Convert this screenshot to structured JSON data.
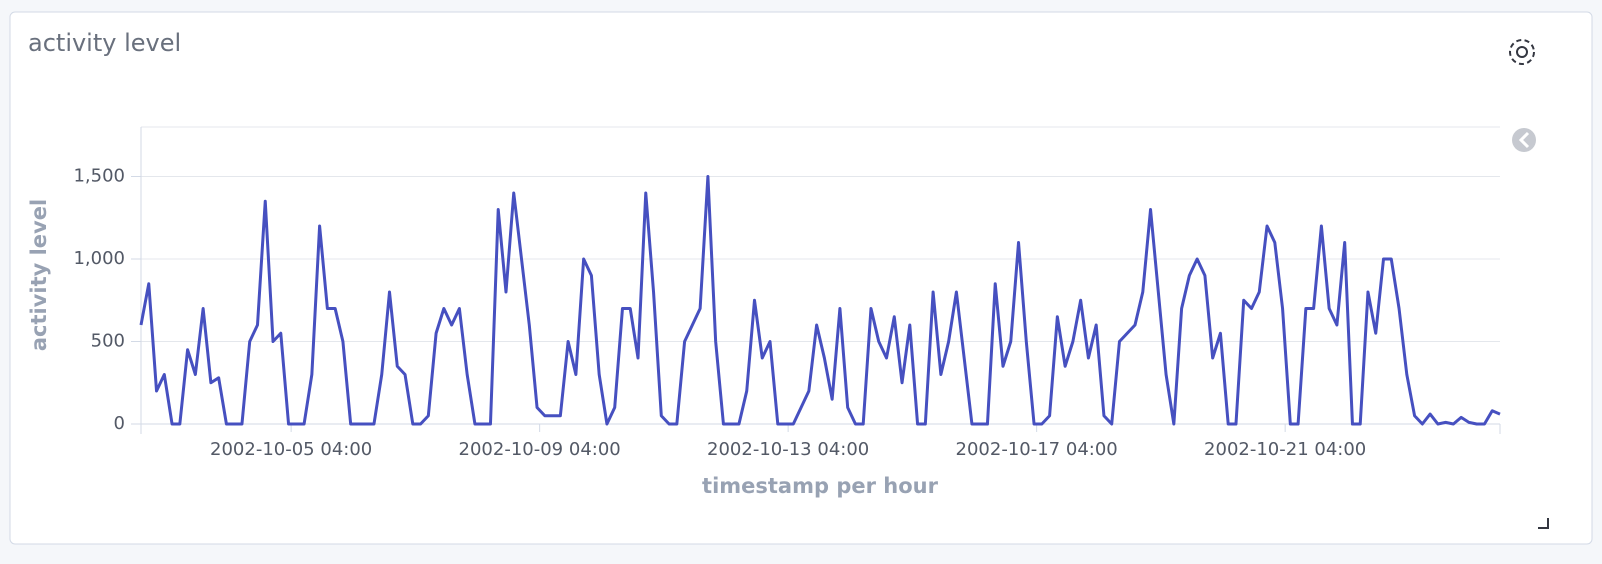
{
  "chart_data": {
    "type": "line",
    "title": "activity level",
    "xlabel": "timestamp per hour",
    "ylabel": "activity level",
    "x": [
      "2002-10-02 18:00",
      "2002-10-02 21:00",
      "2002-10-03 00:00",
      "2002-10-03 03:00",
      "2002-10-03 06:00",
      "2002-10-03 09:00",
      "2002-10-03 12:00",
      "2002-10-03 15:00",
      "2002-10-03 18:00",
      "2002-10-03 21:00",
      "2002-10-04 00:00",
      "2002-10-04 03:00",
      "2002-10-04 06:00",
      "2002-10-04 09:00",
      "2002-10-04 12:00",
      "2002-10-04 15:00",
      "2002-10-04 18:00",
      "2002-10-04 21:00",
      "2002-10-05 00:00",
      "2002-10-05 03:00",
      "2002-10-05 06:00",
      "2002-10-05 09:00",
      "2002-10-05 12:00",
      "2002-10-05 15:00",
      "2002-10-05 18:00",
      "2002-10-05 21:00",
      "2002-10-06 00:00",
      "2002-10-06 03:00",
      "2002-10-06 06:00",
      "2002-10-06 09:00",
      "2002-10-06 12:00",
      "2002-10-06 15:00",
      "2002-10-06 18:00",
      "2002-10-06 21:00",
      "2002-10-07 00:00",
      "2002-10-07 03:00",
      "2002-10-07 06:00",
      "2002-10-07 09:00",
      "2002-10-07 12:00",
      "2002-10-07 15:00",
      "2002-10-07 18:00",
      "2002-10-07 21:00",
      "2002-10-08 00:00",
      "2002-10-08 03:00",
      "2002-10-08 06:00",
      "2002-10-08 09:00",
      "2002-10-08 12:00",
      "2002-10-08 15:00",
      "2002-10-08 18:00",
      "2002-10-08 21:00",
      "2002-10-09 00:00",
      "2002-10-09 03:00",
      "2002-10-09 06:00",
      "2002-10-09 09:00",
      "2002-10-09 12:00",
      "2002-10-09 15:00",
      "2002-10-09 18:00",
      "2002-10-09 21:00",
      "2002-10-10 00:00",
      "2002-10-10 03:00",
      "2002-10-10 06:00",
      "2002-10-10 09:00",
      "2002-10-10 12:00",
      "2002-10-10 15:00",
      "2002-10-10 18:00",
      "2002-10-10 21:00",
      "2002-10-11 00:00",
      "2002-10-11 03:00",
      "2002-10-11 06:00",
      "2002-10-11 09:00",
      "2002-10-11 12:00",
      "2002-10-11 15:00",
      "2002-10-11 18:00",
      "2002-10-11 21:00",
      "2002-10-12 00:00",
      "2002-10-12 03:00",
      "2002-10-12 06:00",
      "2002-10-12 09:00",
      "2002-10-12 12:00",
      "2002-10-12 15:00",
      "2002-10-12 18:00",
      "2002-10-12 21:00",
      "2002-10-13 00:00",
      "2002-10-13 03:00",
      "2002-10-13 06:00",
      "2002-10-13 09:00",
      "2002-10-13 12:00",
      "2002-10-13 15:00",
      "2002-10-13 18:00",
      "2002-10-13 21:00",
      "2002-10-14 00:00",
      "2002-10-14 03:00",
      "2002-10-14 06:00",
      "2002-10-14 09:00",
      "2002-10-14 12:00",
      "2002-10-14 15:00",
      "2002-10-14 18:00",
      "2002-10-14 21:00",
      "2002-10-15 00:00",
      "2002-10-15 03:00",
      "2002-10-15 06:00",
      "2002-10-15 09:00",
      "2002-10-15 12:00",
      "2002-10-15 15:00",
      "2002-10-15 18:00",
      "2002-10-15 21:00",
      "2002-10-16 00:00",
      "2002-10-16 03:00",
      "2002-10-16 06:00",
      "2002-10-16 09:00",
      "2002-10-16 12:00",
      "2002-10-16 15:00",
      "2002-10-16 18:00",
      "2002-10-16 21:00",
      "2002-10-17 00:00",
      "2002-10-17 03:00",
      "2002-10-17 06:00",
      "2002-10-17 09:00",
      "2002-10-17 12:00",
      "2002-10-17 15:00",
      "2002-10-17 18:00",
      "2002-10-17 21:00",
      "2002-10-18 00:00",
      "2002-10-18 03:00",
      "2002-10-18 06:00",
      "2002-10-18 09:00",
      "2002-10-18 12:00",
      "2002-10-18 15:00",
      "2002-10-18 18:00",
      "2002-10-18 21:00",
      "2002-10-19 00:00",
      "2002-10-19 03:00",
      "2002-10-19 06:00",
      "2002-10-19 09:00",
      "2002-10-19 12:00",
      "2002-10-19 15:00",
      "2002-10-19 18:00",
      "2002-10-19 21:00",
      "2002-10-20 00:00",
      "2002-10-20 03:00",
      "2002-10-20 06:00",
      "2002-10-20 09:00",
      "2002-10-20 12:00",
      "2002-10-20 15:00",
      "2002-10-20 18:00",
      "2002-10-20 21:00",
      "2002-10-21 00:00",
      "2002-10-21 03:00",
      "2002-10-21 06:00",
      "2002-10-21 09:00",
      "2002-10-21 12:00",
      "2002-10-21 15:00",
      "2002-10-21 18:00",
      "2002-10-21 21:00",
      "2002-10-22 00:00",
      "2002-10-22 03:00",
      "2002-10-22 06:00",
      "2002-10-22 09:00",
      "2002-10-22 12:00",
      "2002-10-22 15:00",
      "2002-10-22 18:00",
      "2002-10-22 21:00",
      "2002-10-23 00:00",
      "2002-10-23 03:00",
      "2002-10-23 06:00",
      "2002-10-23 09:00",
      "2002-10-23 12:00",
      "2002-10-23 15:00",
      "2002-10-23 18:00",
      "2002-10-23 21:00",
      "2002-10-24 00:00",
      "2002-10-24 03:00",
      "2002-10-24 06:00",
      "2002-10-24 09:00",
      "2002-10-24 12:00",
      "2002-10-24 15:00"
    ],
    "series": [
      {
        "name": "activity level",
        "color": "#4650c0",
        "values": [
          600,
          850,
          200,
          300,
          0,
          0,
          450,
          300,
          700,
          250,
          280,
          0,
          0,
          0,
          500,
          600,
          1350,
          500,
          550,
          0,
          0,
          0,
          300,
          1200,
          700,
          700,
          500,
          0,
          0,
          0,
          0,
          300,
          800,
          350,
          300,
          0,
          0,
          50,
          550,
          700,
          600,
          700,
          300,
          0,
          0,
          0,
          1300,
          800,
          1400,
          1000,
          600,
          100,
          50,
          50,
          50,
          500,
          300,
          1000,
          900,
          300,
          0,
          100,
          700,
          700,
          400,
          1400,
          800,
          50,
          0,
          0,
          500,
          600,
          700,
          1500,
          500,
          0,
          0,
          0,
          200,
          750,
          400,
          500,
          0,
          0,
          0,
          100,
          200,
          600,
          400,
          150,
          700,
          100,
          0,
          0,
          700,
          500,
          400,
          650,
          250,
          600,
          0,
          0,
          800,
          300,
          500,
          800,
          400,
          0,
          0,
          0,
          850,
          350,
          500,
          1100,
          500,
          0,
          0,
          50,
          650,
          350,
          500,
          750,
          400,
          600,
          50,
          0,
          500,
          550,
          600,
          800,
          1300,
          800,
          300,
          0,
          700,
          900,
          1000,
          900,
          400,
          550,
          0,
          0,
          750,
          700,
          800,
          1200,
          1100,
          700,
          0,
          0,
          700,
          700,
          1200,
          700,
          600,
          1100,
          0,
          0,
          800,
          550,
          1000,
          1000,
          700,
          300,
          50,
          0,
          60,
          0,
          10,
          0,
          40,
          10,
          0,
          0,
          80,
          60
        ]
      }
    ],
    "xlim": [
      "2002-10-02 18:00",
      "2002-10-24 15:00"
    ],
    "xticks": [
      "2002-10-05 04:00",
      "2002-10-09 04:00",
      "2002-10-13 04:00",
      "2002-10-17 04:00",
      "2002-10-21 04:00"
    ],
    "ylim": [
      0,
      1800
    ],
    "yticks": [
      0,
      500,
      {
        "value": 1000,
        "label": "1,000"
      },
      {
        "value": 1500,
        "label": "1,500"
      }
    ],
    "grid": true
  }
}
